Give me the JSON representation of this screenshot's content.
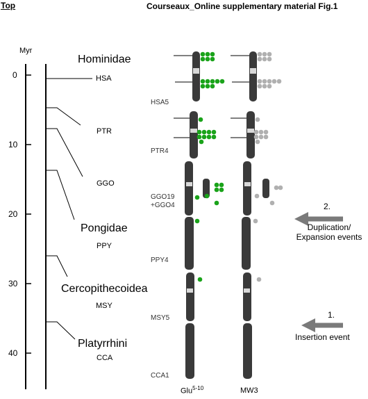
{
  "header": {
    "top_link": "Top",
    "title": "Courseaux_Online supplementary material Fig.1"
  },
  "timescale": {
    "unit": "Myr",
    "ticks": [
      "0",
      "10",
      "20",
      "30",
      "40"
    ]
  },
  "groups": [
    "Hominidae",
    "Pongidae",
    "Cercopithecoidea",
    "Platyrrhini"
  ],
  "species": [
    "HSA",
    "PTR",
    "GGO",
    "PPY",
    "MSY",
    "CCA"
  ],
  "chromosomes": [
    "HSA5",
    "PTR4",
    "GGO19",
    "+GGO4",
    "PPY4",
    "MSY5",
    "CCA1"
  ],
  "events": {
    "e2_num": "2.",
    "e2_line1": "Duplication/",
    "e2_line2": "Expansion events",
    "e1_num": "1.",
    "e1_line1": "Insertion event"
  },
  "columns": {
    "probe1_base": "Glu",
    "probe1_sup": "5-10",
    "probe2": "MW3"
  },
  "colors": {
    "probe1_signal": "#1aa31a",
    "probe2_signal": "#b0b0b0",
    "arrow": "#7a7a7a"
  },
  "icons": {
    "event_arrow": "left-arrow-icon"
  }
}
